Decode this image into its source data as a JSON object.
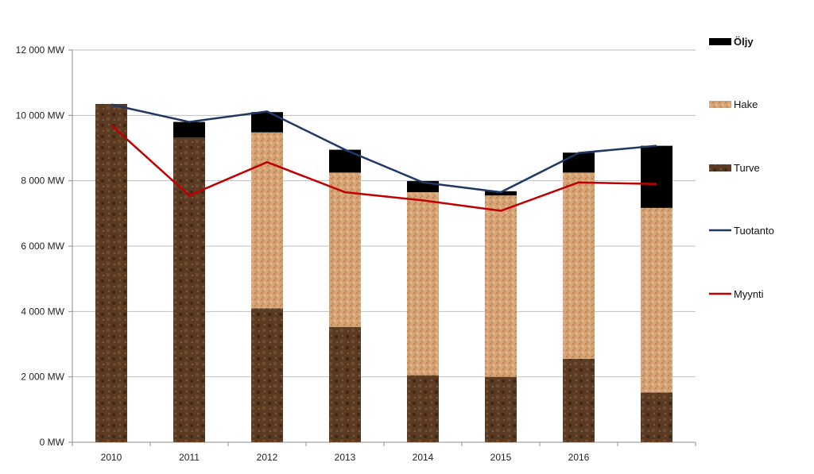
{
  "chart_data": {
    "type": "bar",
    "stacked": true,
    "title": "",
    "xlabel": "",
    "ylabel": "",
    "unit": "MW",
    "categories": [
      "2010",
      "2011",
      "2012",
      "2013",
      "2014",
      "2015",
      "2016",
      ""
    ],
    "ylim": [
      0,
      12000
    ],
    "y_ticks": [
      "0 MW",
      "2 000 MW",
      "4 000 MW",
      "6 000 MW",
      "8 000 MW",
      "10 000 MW",
      "12 000 MW"
    ],
    "grid": true,
    "legend_position": "right",
    "series": [
      {
        "name": "Turve",
        "kind": "bar",
        "color": "#5a3a22",
        "values": [
          10350,
          9320,
          4100,
          3530,
          2050,
          2000,
          2550,
          1520
        ]
      },
      {
        "name": "Hake",
        "kind": "bar",
        "color": "#d7a273",
        "values": [
          0,
          0,
          5380,
          4720,
          5600,
          5550,
          5700,
          5650
        ]
      },
      {
        "name": "Öljy",
        "kind": "bar",
        "color": "#000000",
        "values": [
          0,
          480,
          620,
          700,
          340,
          130,
          610,
          1900
        ]
      },
      {
        "name": "Tuotanto",
        "kind": "line",
        "color": "#1f3864",
        "values": [
          10330,
          9800,
          10120,
          8950,
          7950,
          7650,
          8850,
          9070
        ]
      },
      {
        "name": "Myynti",
        "kind": "line",
        "color": "#c00000",
        "values": [
          9700,
          7550,
          8570,
          7650,
          7400,
          7080,
          7950,
          7900
        ]
      }
    ],
    "legend_order": [
      "Öljy",
      "Hake",
      "Turve",
      "Tuotanto",
      "Myynti"
    ]
  }
}
